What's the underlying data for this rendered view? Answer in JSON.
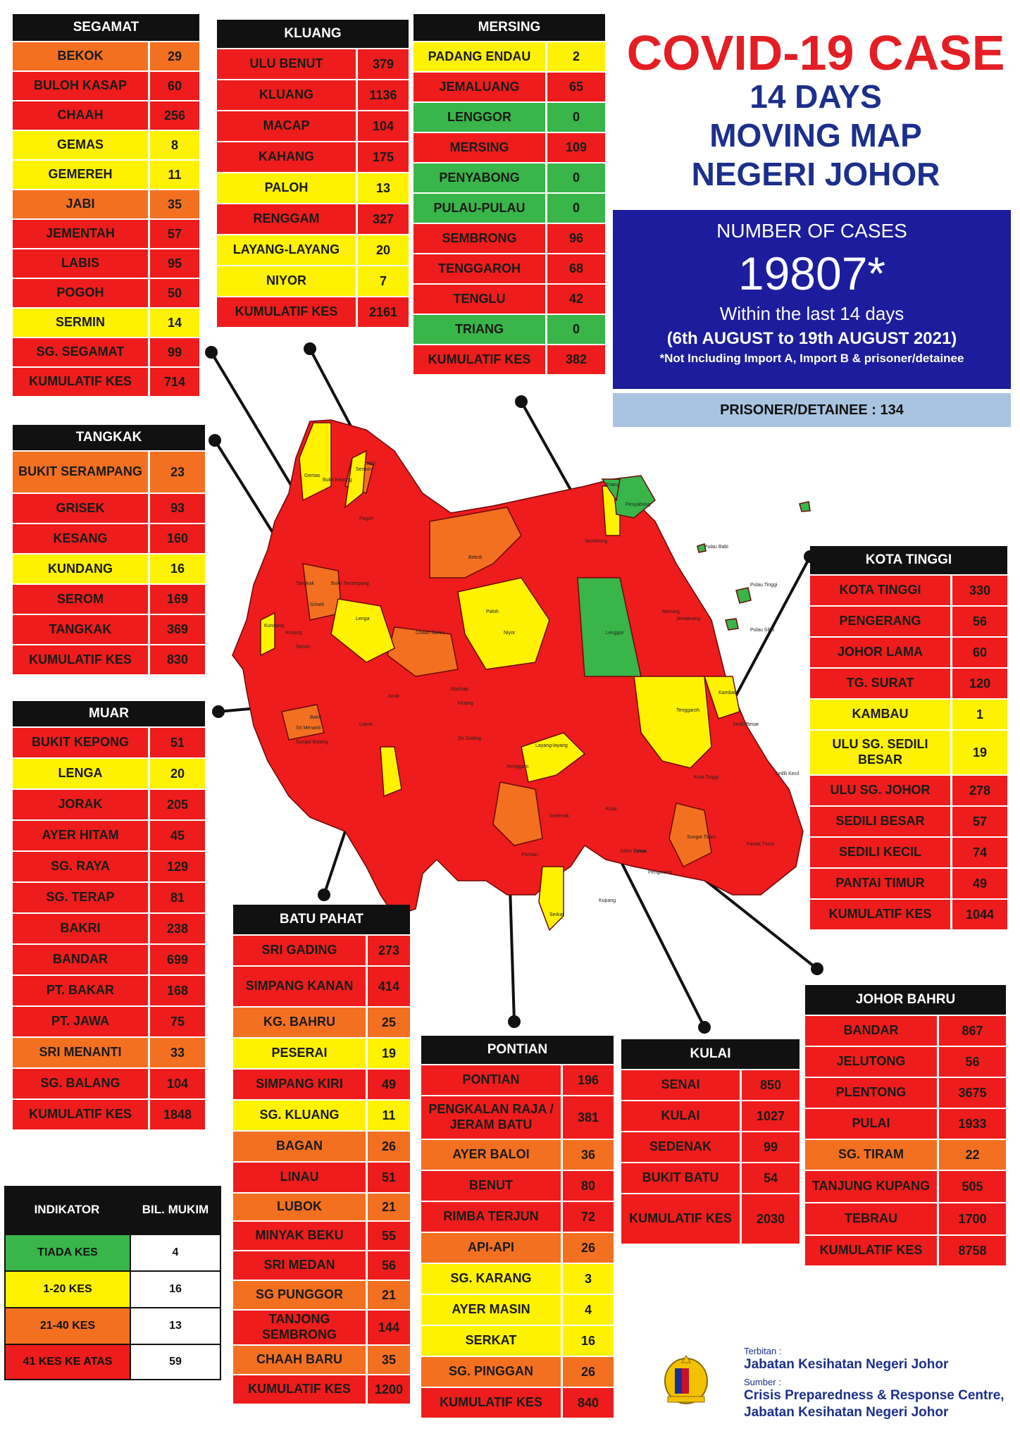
{
  "title": {
    "line1": "COVID-19 CASE",
    "line2": "14 DAYS",
    "line3": "MOVING MAP",
    "line4": "NEGERI JOHOR"
  },
  "cases": {
    "label": "NUMBER OF CASES",
    "total": "19807*",
    "period": "Within the last 14 days",
    "range": "(6th AUGUST  to 19th AUGUST 2021)",
    "note": "*Not Including Import A, Import B & prisoner/detainee"
  },
  "prisoner": "PRISONER/DETAINEE : 134",
  "colors": {
    "red": "#ee1c1c",
    "orange": "#f37021",
    "yellow": "#fff200",
    "green": "#39b54a",
    "header": "#111111",
    "title_red": "#e31e24",
    "title_blue": "#1d2f8c",
    "cases_box": "#1c1c9c",
    "prisoner_box": "#a9c4e0"
  },
  "districts": {
    "segamat": {
      "name": "SEGAMAT",
      "rows": [
        {
          "name": "BEKOK",
          "value": "29",
          "level": "o"
        },
        {
          "name": "BULOH KASAP",
          "value": "60",
          "level": "r"
        },
        {
          "name": "CHAAH",
          "value": "256",
          "level": "r"
        },
        {
          "name": "GEMAS",
          "value": "8",
          "level": "y"
        },
        {
          "name": "GEMEREH",
          "value": "11",
          "level": "y"
        },
        {
          "name": "JABI",
          "value": "35",
          "level": "o"
        },
        {
          "name": "JEMENTAH",
          "value": "57",
          "level": "r"
        },
        {
          "name": "LABIS",
          "value": "95",
          "level": "r"
        },
        {
          "name": "POGOH",
          "value": "50",
          "level": "r"
        },
        {
          "name": "SERMIN",
          "value": "14",
          "level": "y"
        },
        {
          "name": "SG. SEGAMAT",
          "value": "99",
          "level": "r"
        },
        {
          "name": "KUMULATIF KES",
          "value": "714",
          "level": "r"
        }
      ]
    },
    "kluang": {
      "name": "KLUANG",
      "rows": [
        {
          "name": "ULU BENUT",
          "value": "379",
          "level": "r"
        },
        {
          "name": "KLUANG",
          "value": "1136",
          "level": "r"
        },
        {
          "name": "MACAP",
          "value": "104",
          "level": "r"
        },
        {
          "name": "KAHANG",
          "value": "175",
          "level": "r"
        },
        {
          "name": "PALOH",
          "value": "13",
          "level": "y"
        },
        {
          "name": "RENGGAM",
          "value": "327",
          "level": "r"
        },
        {
          "name": "LAYANG-LAYANG",
          "value": "20",
          "level": "y"
        },
        {
          "name": "NIYOR",
          "value": "7",
          "level": "y"
        },
        {
          "name": "KUMULATIF KES",
          "value": "2161",
          "level": "r"
        }
      ]
    },
    "mersing": {
      "name": "MERSING",
      "rows": [
        {
          "name": "PADANG ENDAU",
          "value": "2",
          "level": "y"
        },
        {
          "name": "JEMALUANG",
          "value": "65",
          "level": "r"
        },
        {
          "name": "LENGGOR",
          "value": "0",
          "level": "g"
        },
        {
          "name": "MERSING",
          "value": "109",
          "level": "r"
        },
        {
          "name": "PENYABONG",
          "value": "0",
          "level": "g"
        },
        {
          "name": "PULAU-PULAU",
          "value": "0",
          "level": "g"
        },
        {
          "name": "SEMBRONG",
          "value": "96",
          "level": "r"
        },
        {
          "name": "TENGGAROH",
          "value": "68",
          "level": "r"
        },
        {
          "name": "TENGLU",
          "value": "42",
          "level": "r"
        },
        {
          "name": "TRIANG",
          "value": "0",
          "level": "g"
        },
        {
          "name": "KUMULATIF KES",
          "value": "382",
          "level": "r"
        }
      ]
    },
    "tangkak": {
      "name": "TANGKAK",
      "rows": [
        {
          "name": "BUKIT SERAMPANG",
          "value": "23",
          "level": "o"
        },
        {
          "name": "GRISEK",
          "value": "93",
          "level": "r"
        },
        {
          "name": "KESANG",
          "value": "160",
          "level": "r"
        },
        {
          "name": "KUNDANG",
          "value": "16",
          "level": "y"
        },
        {
          "name": "SEROM",
          "value": "169",
          "level": "r"
        },
        {
          "name": "TANGKAK",
          "value": "369",
          "level": "r"
        },
        {
          "name": "KUMULATIF KES",
          "value": "830",
          "level": "r"
        }
      ]
    },
    "muar": {
      "name": "MUAR",
      "rows": [
        {
          "name": "BUKIT KEPONG",
          "value": "51",
          "level": "r"
        },
        {
          "name": "LENGA",
          "value": "20",
          "level": "y"
        },
        {
          "name": "JORAK",
          "value": "205",
          "level": "r"
        },
        {
          "name": "AYER HITAM",
          "value": "45",
          "level": "r"
        },
        {
          "name": "SG. RAYA",
          "value": "129",
          "level": "r"
        },
        {
          "name": "SG. TERAP",
          "value": "81",
          "level": "r"
        },
        {
          "name": "BAKRI",
          "value": "238",
          "level": "r"
        },
        {
          "name": "BANDAR",
          "value": "699",
          "level": "r"
        },
        {
          "name": "PT. BAKAR",
          "value": "168",
          "level": "r"
        },
        {
          "name": "PT. JAWA",
          "value": "75",
          "level": "r"
        },
        {
          "name": "SRI MENANTI",
          "value": "33",
          "level": "o"
        },
        {
          "name": "SG. BALANG",
          "value": "104",
          "level": "r"
        },
        {
          "name": "KUMULATIF KES",
          "value": "1848",
          "level": "r"
        }
      ]
    },
    "kota_tinggi": {
      "name": "KOTA TINGGI",
      "rows": [
        {
          "name": "KOTA TINGGI",
          "value": "330",
          "level": "r"
        },
        {
          "name": "PENGERANG",
          "value": "56",
          "level": "r"
        },
        {
          "name": "JOHOR LAMA",
          "value": "60",
          "level": "r"
        },
        {
          "name": "TG. SURAT",
          "value": "120",
          "level": "r"
        },
        {
          "name": "KAMBAU",
          "value": "1",
          "level": "y"
        },
        {
          "name": "ULU SG. SEDILI BESAR",
          "value": "19",
          "level": "y"
        },
        {
          "name": "ULU  SG. JOHOR",
          "value": "278",
          "level": "r"
        },
        {
          "name": "SEDILI BESAR",
          "value": "57",
          "level": "r"
        },
        {
          "name": "SEDILI KECIL",
          "value": "74",
          "level": "r"
        },
        {
          "name": "PANTAI TIMUR",
          "value": "49",
          "level": "r"
        },
        {
          "name": "KUMULATIF KES",
          "value": "1044",
          "level": "r"
        }
      ]
    },
    "batu_pahat": {
      "name": "BATU PAHAT",
      "rows": [
        {
          "name": "SRI GADING",
          "value": "273",
          "level": "r"
        },
        {
          "name": "SIMPANG KANAN",
          "value": "414",
          "level": "r"
        },
        {
          "name": "KG. BAHRU",
          "value": "25",
          "level": "o"
        },
        {
          "name": "PESERAI",
          "value": "19",
          "level": "y"
        },
        {
          "name": "SIMPANG KIRI",
          "value": "49",
          "level": "r"
        },
        {
          "name": "SG. KLUANG",
          "value": "11",
          "level": "y"
        },
        {
          "name": "BAGAN",
          "value": "26",
          "level": "o"
        },
        {
          "name": "LINAU",
          "value": "51",
          "level": "r"
        },
        {
          "name": "LUBOK",
          "value": "21",
          "level": "o"
        },
        {
          "name": "MINYAK BEKU",
          "value": "55",
          "level": "r"
        },
        {
          "name": "SRI MEDAN",
          "value": "56",
          "level": "r"
        },
        {
          "name": "SG PUNGGOR",
          "value": "21",
          "level": "o"
        },
        {
          "name": "TANJONG SEMBRONG",
          "value": "144",
          "level": "r"
        },
        {
          "name": "CHAAH BARU",
          "value": "35",
          "level": "o"
        },
        {
          "name": "KUMULATIF KES",
          "value": "1200",
          "level": "r"
        }
      ]
    },
    "pontian": {
      "name": "PONTIAN",
      "rows": [
        {
          "name": "PONTIAN",
          "value": "196",
          "level": "r"
        },
        {
          "name": "PENGKALAN RAJA / JERAM BATU",
          "value": "381",
          "level": "r"
        },
        {
          "name": "AYER BALOI",
          "value": "36",
          "level": "o"
        },
        {
          "name": "BENUT",
          "value": "80",
          "level": "r"
        },
        {
          "name": "RIMBA TERJUN",
          "value": "72",
          "level": "r"
        },
        {
          "name": "API-API",
          "value": "26",
          "level": "o"
        },
        {
          "name": "SG. KARANG",
          "value": "3",
          "level": "y"
        },
        {
          "name": "AYER MASIN",
          "value": "4",
          "level": "y"
        },
        {
          "name": "SERKAT",
          "value": "16",
          "level": "y"
        },
        {
          "name": "SG. PINGGAN",
          "value": "26",
          "level": "o"
        },
        {
          "name": "KUMULATIF KES",
          "value": "840",
          "level": "r"
        }
      ]
    },
    "kulai": {
      "name": "KULAI",
      "rows": [
        {
          "name": "SENAI",
          "value": "850",
          "level": "r"
        },
        {
          "name": "KULAI",
          "value": "1027",
          "level": "r"
        },
        {
          "name": "SEDENAK",
          "value": "99",
          "level": "r"
        },
        {
          "name": "BUKIT BATU",
          "value": "54",
          "level": "r"
        },
        {
          "name": "KUMULATIF KES",
          "value": "2030",
          "level": "r"
        }
      ]
    },
    "johor_bahru": {
      "name": "JOHOR BAHRU",
      "rows": [
        {
          "name": "BANDAR",
          "value": "867",
          "level": "r"
        },
        {
          "name": "JELUTONG",
          "value": "56",
          "level": "r"
        },
        {
          "name": "PLENTONG",
          "value": "3675",
          "level": "r"
        },
        {
          "name": "PULAI",
          "value": "1933",
          "level": "r"
        },
        {
          "name": "SG. TIRAM",
          "value": "22",
          "level": "o"
        },
        {
          "name": "TANJUNG KUPANG",
          "value": "505",
          "level": "r"
        },
        {
          "name": "TEBRAU",
          "value": "1700",
          "level": "r"
        },
        {
          "name": "KUMULATIF KES",
          "value": "8758",
          "level": "r"
        }
      ]
    }
  },
  "legend": {
    "header_indicator": "INDIKATOR",
    "header_count": "BIL. MUKIM",
    "rows": [
      {
        "label": "TIADA KES",
        "count": "4",
        "level": "g"
      },
      {
        "label": "1-20 KES",
        "count": "16",
        "level": "y"
      },
      {
        "label": "21-40 KES",
        "count": "13",
        "level": "o"
      },
      {
        "label": "41 KES KE ATAS",
        "count": "59",
        "level": "r"
      }
    ]
  },
  "footer": {
    "published_label": "Terbitan :",
    "published_by": "Jabatan Kesihatan Negeri Johor",
    "source_label": "Sumber :",
    "source_line1": "Crisis Preparedness & Response Centre,",
    "source_line2": "Jabatan Kesihatan Negeri Johor"
  },
  "map_labels": [
    "Gemas",
    "Bukit Kepong",
    "Jabi",
    "Sermin",
    "Pogoh",
    "Bekok",
    "Paloh",
    "Niyor",
    "Lenga",
    "Chaah Bahru",
    "Lenggor",
    "Kota Tinggi",
    "Penyabong",
    "Triang",
    "Pulau Babi",
    "Pulau Tinggi",
    "Pulau Sibu",
    "Kambau",
    "Sungai Tiram",
    "Layang-layang",
    "Pontian",
    "Serkat",
    "Kupang",
    "Senai",
    "Kulai",
    "Sedenak",
    "Tangkak",
    "Kesang",
    "Serom",
    "Bukit Serampang",
    "Grisek",
    "Kundang",
    "Jorak",
    "Bakri",
    "Sri Menanti",
    "Sungai Balang",
    "Lubok",
    "Sri Gading",
    "Renggam",
    "Kluang",
    "Machap",
    "Mersing",
    "Jemaluang",
    "Sembrong",
    "Tenggaroh",
    "Sedili Besar",
    "Sedili Kecil",
    "Pantai Timur",
    "Johor Lama",
    "Pengerang"
  ]
}
